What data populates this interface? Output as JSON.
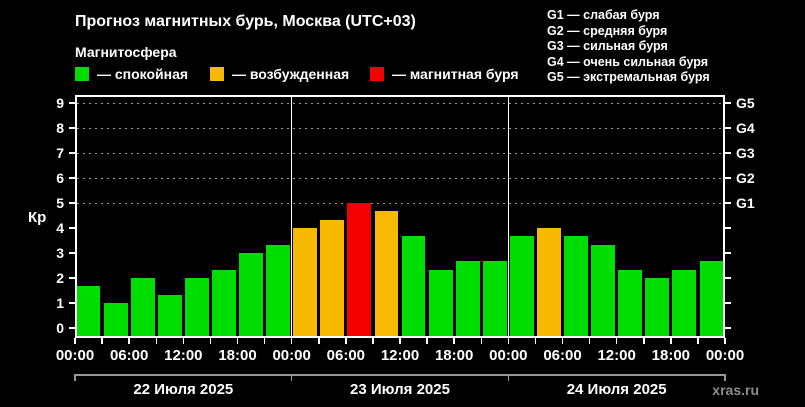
{
  "title": "Прогноз магнитных бурь, Москва (UTC+03)",
  "magnetosphere": {
    "title": "Магнитосфера",
    "legend": [
      {
        "label": "— спокойная",
        "level": "quiet",
        "color": "#00dd00"
      },
      {
        "label": "— возбужденная",
        "level": "active",
        "color": "#f8ba00"
      },
      {
        "label": "— магнитная буря",
        "level": "storm",
        "color": "#f40000"
      }
    ]
  },
  "storm_scale_legend": [
    "G1 — слабая буря",
    "G2 — средняя буря",
    "G3 — сильная буря",
    "G4 — очень сильная буря",
    "G5 — экстремальная буря"
  ],
  "watermark": "xras.ru",
  "chart_data": {
    "type": "bar",
    "ylabel": "Кр",
    "ylim": [
      0,
      9
    ],
    "yticks": [
      0,
      1,
      2,
      3,
      4,
      5,
      6,
      7,
      8,
      9
    ],
    "gridlines_at_kp": [
      5,
      6,
      7,
      8,
      9
    ],
    "grid": "dashed horizontal lines at storm levels only",
    "legend_position": "top",
    "right_axis_labels": [
      {
        "kp": 9,
        "label": "G5"
      },
      {
        "kp": 8,
        "label": "G4"
      },
      {
        "kp": 7,
        "label": "G3"
      },
      {
        "kp": 6,
        "label": "G2"
      },
      {
        "kp": 5,
        "label": "G1"
      }
    ],
    "bar_interval_hours": 3,
    "time_tick_labels": [
      "00:00",
      "06:00",
      "12:00",
      "18:00",
      "00:00",
      "06:00",
      "12:00",
      "18:00",
      "00:00",
      "06:00",
      "12:00",
      "18:00",
      "00:00"
    ],
    "days": [
      {
        "date": "22 Июля 2025",
        "values": [
          1.67,
          1.0,
          2.0,
          1.33,
          2.0,
          2.33,
          3.0,
          3.33
        ],
        "levels": [
          "quiet",
          "quiet",
          "quiet",
          "quiet",
          "quiet",
          "quiet",
          "quiet",
          "quiet"
        ]
      },
      {
        "date": "23 Июля 2025",
        "values": [
          4.0,
          4.33,
          5.0,
          4.67,
          3.67,
          2.33,
          2.67,
          2.67
        ],
        "levels": [
          "active",
          "active",
          "storm",
          "active",
          "quiet",
          "quiet",
          "quiet",
          "quiet"
        ]
      },
      {
        "date": "24 Июля 2025",
        "values": [
          3.67,
          4.0,
          3.67,
          3.33,
          2.33,
          2.0,
          2.33,
          2.67
        ],
        "levels": [
          "quiet",
          "active",
          "quiet",
          "quiet",
          "quiet",
          "quiet",
          "quiet",
          "quiet"
        ]
      }
    ]
  }
}
